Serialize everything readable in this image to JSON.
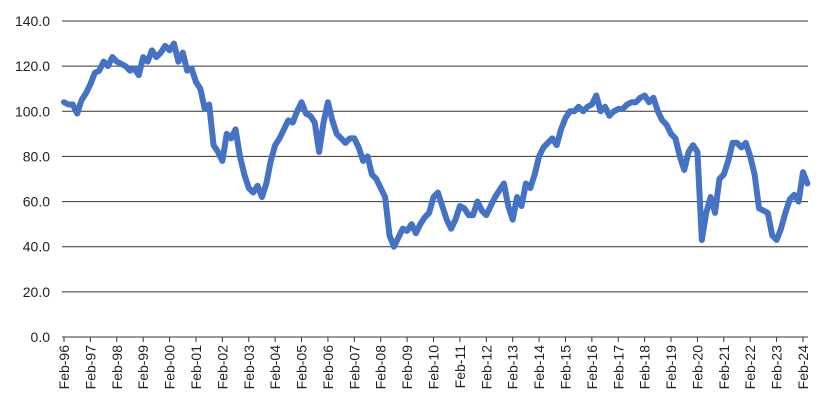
{
  "chart_data": {
    "type": "line",
    "categories": [
      "Feb-96",
      null,
      null,
      null,
      null,
      null,
      "Feb-97",
      null,
      null,
      null,
      null,
      null,
      "Feb-98",
      null,
      null,
      null,
      null,
      null,
      "Feb-99",
      null,
      null,
      null,
      null,
      null,
      "Feb-00",
      null,
      null,
      null,
      null,
      null,
      "Feb-01",
      null,
      null,
      null,
      null,
      null,
      "Feb-02",
      null,
      null,
      null,
      null,
      null,
      "Feb-03",
      null,
      null,
      null,
      null,
      null,
      "Feb-04",
      null,
      null,
      null,
      null,
      null,
      "Feb-05",
      null,
      null,
      null,
      null,
      null,
      "Feb-06",
      null,
      null,
      null,
      null,
      null,
      "Feb-07",
      null,
      null,
      null,
      null,
      null,
      "Feb-08",
      null,
      null,
      null,
      null,
      null,
      "Feb-09",
      null,
      null,
      null,
      null,
      null,
      "Feb-10",
      null,
      null,
      null,
      null,
      null,
      "Feb-11",
      null,
      null,
      null,
      null,
      null,
      "Feb-12",
      null,
      null,
      null,
      null,
      null,
      "Feb-13",
      null,
      null,
      null,
      null,
      null,
      "Feb-14",
      null,
      null,
      null,
      null,
      null,
      "Feb-15",
      null,
      null,
      null,
      null,
      null,
      "Feb-16",
      null,
      null,
      null,
      null,
      null,
      "Feb-17",
      null,
      null,
      null,
      null,
      null,
      "Feb-18",
      null,
      null,
      null,
      null,
      null,
      "Feb-19",
      null,
      null,
      null,
      null,
      null,
      "Feb-20",
      null,
      null,
      null,
      null,
      null,
      "Feb-21",
      null,
      null,
      null,
      null,
      null,
      "Feb-22",
      null,
      null,
      null,
      null,
      null,
      "Feb-23",
      null,
      null,
      null,
      null,
      null,
      "Feb-24",
      null
    ],
    "values": [
      104,
      103,
      103,
      99,
      105,
      108,
      112,
      117,
      118,
      122,
      120,
      124,
      122,
      121,
      120,
      118,
      119,
      116,
      124,
      122,
      127,
      124,
      126,
      129,
      127,
      130,
      122,
      126,
      118,
      119,
      113,
      110,
      101,
      103,
      85,
      82,
      78,
      90,
      88,
      92,
      80,
      72,
      66,
      64,
      67,
      62,
      68,
      78,
      85,
      88,
      92,
      96,
      95,
      100,
      104,
      99,
      98,
      95,
      82,
      95,
      104,
      96,
      90,
      88,
      86,
      88,
      88,
      84,
      78,
      80,
      72,
      70,
      66,
      62,
      45,
      40,
      44,
      48,
      47,
      50,
      46,
      50,
      53,
      55,
      62,
      64,
      58,
      52,
      48,
      52,
      58,
      57,
      54,
      54,
      60,
      56,
      54,
      58,
      62,
      65,
      68,
      58,
      52,
      62,
      58,
      68,
      66,
      72,
      80,
      84,
      86,
      88,
      85,
      92,
      97,
      100,
      100,
      102,
      100,
      102,
      103,
      107,
      100,
      102,
      98,
      100,
      101,
      101,
      103,
      104,
      104,
      106,
      107,
      104,
      106,
      100,
      96,
      94,
      90,
      88,
      80,
      74,
      82,
      85,
      82,
      43,
      55,
      62,
      55,
      70,
      72,
      78,
      86,
      86,
      84,
      86,
      80,
      72,
      57,
      56,
      55,
      45,
      43,
      48,
      55,
      61,
      63,
      60,
      73,
      68
    ],
    "color": "#4472c4",
    "ylim": [
      0,
      140
    ],
    "yticks": [
      {
        "value": 0,
        "label": "0.0"
      },
      {
        "value": 20,
        "label": "20.0"
      },
      {
        "value": 40,
        "label": "40.0"
      },
      {
        "value": 60,
        "label": "60.0"
      },
      {
        "value": 80,
        "label": "80.0"
      },
      {
        "value": 100,
        "label": "100.0"
      },
      {
        "value": 120,
        "label": "120.0"
      },
      {
        "value": 140,
        "label": "140.0"
      }
    ],
    "grid": true
  }
}
